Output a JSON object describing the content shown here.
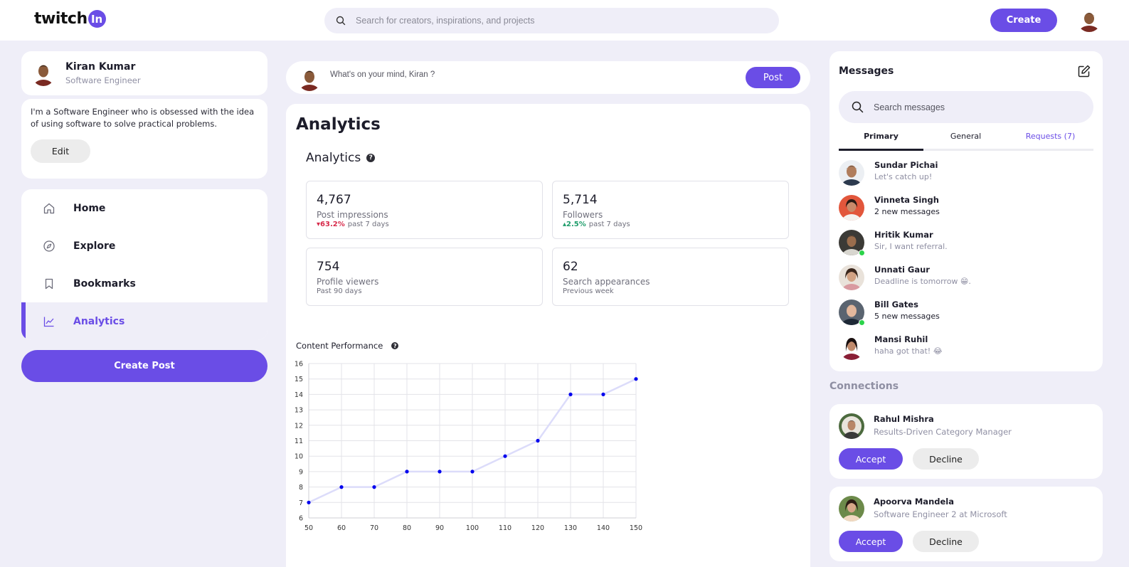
{
  "app": {
    "logo_text": "twitch",
    "logo_badge": "In",
    "search_placeholder": "Search for creators, inspirations, and projects",
    "create_label": "Create",
    "accent": "#6a4de6"
  },
  "profile": {
    "name": "Kiran Kumar",
    "role": "Software Engineer",
    "bio": "I'm a Software Engineer who is obsessed with the idea of using software to solve practical problems.",
    "edit_label": "Edit"
  },
  "nav": {
    "items": [
      {
        "label": "Home",
        "icon": "home-icon"
      },
      {
        "label": "Explore",
        "icon": "compass-icon"
      },
      {
        "label": "Bookmarks",
        "icon": "bookmark-icon"
      },
      {
        "label": "Analytics",
        "icon": "chart-line-icon",
        "active": true
      }
    ],
    "create_post_label": "Create Post"
  },
  "composer": {
    "placeholder": "What's on your mind, Kiran ?",
    "post_label": "Post"
  },
  "analytics": {
    "page_title": "Analytics",
    "section_title": "Analytics",
    "help": "?",
    "stats": [
      {
        "value": "4,767",
        "label": "Post impressions",
        "change": "63.2%",
        "direction": "down",
        "period": "past 7 days"
      },
      {
        "value": "5,714",
        "label": "Followers",
        "change": "2.5%",
        "direction": "up",
        "period": "past 7 days"
      },
      {
        "value": "754",
        "label": "Profile viewers",
        "period": "Past 90 days"
      },
      {
        "value": "62",
        "label": "Search appearances",
        "period": "Previous week"
      }
    ],
    "chart_title": "Content Performance"
  },
  "chart_data": {
    "type": "line",
    "title": "Content Performance",
    "x": [
      50,
      60,
      70,
      80,
      90,
      100,
      110,
      120,
      130,
      140,
      150
    ],
    "values": [
      7,
      8,
      8,
      9,
      9,
      9,
      10,
      11,
      14,
      14,
      15
    ],
    "xlim": [
      50,
      150
    ],
    "ylim": [
      6,
      16
    ],
    "x_ticks": [
      "50",
      "60",
      "70",
      "80",
      "90",
      "100",
      "110",
      "120",
      "130",
      "140",
      "150"
    ],
    "y_ticks": [
      "6",
      "7",
      "8",
      "9",
      "10",
      "11",
      "12",
      "13",
      "14",
      "15",
      "16"
    ],
    "grid": true,
    "line_color": "#dcdcfa",
    "point_color": "#0000ee"
  },
  "messages": {
    "title": "Messages",
    "search_placeholder": "Search messages",
    "tabs": [
      {
        "label": "Primary",
        "active": true
      },
      {
        "label": "General"
      },
      {
        "label": "Requests (7)"
      }
    ],
    "items": [
      {
        "name": "Sundar Pichai",
        "text": "Let's catch up!",
        "online": false,
        "dark": false
      },
      {
        "name": "Vinneta Singh",
        "text": "2 new messages",
        "online": false,
        "dark": true
      },
      {
        "name": "Hritik Kumar",
        "text": "Sir, I want referral.",
        "online": true,
        "dark": false
      },
      {
        "name": "Unnati Gaur",
        "text": "Deadline is tomorrow 😁.",
        "online": false,
        "dark": false
      },
      {
        "name": "Bill Gates",
        "text": "5 new messages",
        "online": true,
        "dark": true
      },
      {
        "name": "Mansi Ruhil",
        "text": "haha got that! 😂",
        "online": false,
        "dark": false
      }
    ]
  },
  "connections": {
    "title": "Connections",
    "items": [
      {
        "name": "Rahul Mishra",
        "role": "Results-Driven Category Manager",
        "accept": "Accept",
        "decline": "Decline"
      },
      {
        "name": "Apoorva Mandela",
        "role": "Software Engineer 2 at Microsoft",
        "accept": "Accept",
        "decline": "Decline"
      }
    ]
  }
}
